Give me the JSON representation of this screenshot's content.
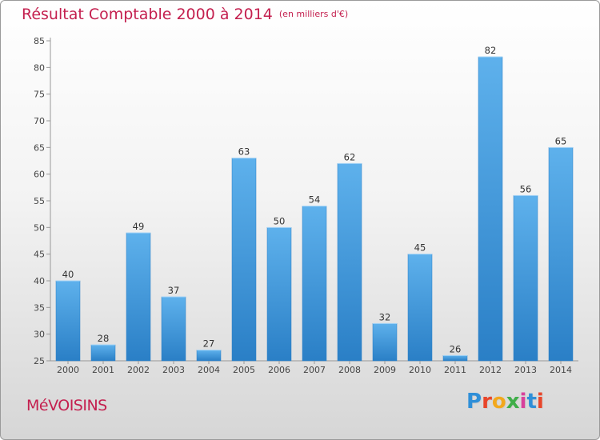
{
  "header": {
    "title": "Résultat Comptable 2000 à 2014",
    "subtitle": "(en milliers d'€)"
  },
  "footer": {
    "commune": "MéVOISINS",
    "logo_letters": [
      "P",
      "r",
      "o",
      "x",
      "i",
      "t",
      "i"
    ],
    "logo_colors": [
      "#2f8fd8",
      "#e8452a",
      "#f2a81d",
      "#3fae49",
      "#d8409b",
      "#2f8fd8",
      "#e8452a"
    ]
  },
  "colors": {
    "bar_light": "#5eb1ec",
    "bar_dark": "#2a7fc6",
    "title": "#c4204f"
  },
  "chart_data": {
    "type": "bar",
    "categories": [
      "2000",
      "2001",
      "2002",
      "2003",
      "2004",
      "2005",
      "2006",
      "2007",
      "2008",
      "2009",
      "2010",
      "2011",
      "2012",
      "2013",
      "2014"
    ],
    "values": [
      40,
      28,
      49,
      37,
      27,
      63,
      50,
      54,
      62,
      32,
      45,
      26,
      82,
      56,
      65
    ],
    "value_labels": [
      "40",
      "28",
      "49",
      "37",
      "27",
      "63",
      "50",
      "54",
      "62",
      "32",
      "45",
      "26",
      "82",
      "56",
      "65"
    ],
    "ylim": [
      25,
      85
    ],
    "yticks": [
      25,
      30,
      35,
      40,
      45,
      50,
      55,
      60,
      65,
      70,
      75,
      80,
      85
    ],
    "ytick_labels": [
      "25",
      "30",
      "35",
      "40",
      "45",
      "50",
      "55",
      "60",
      "65",
      "70",
      "75",
      "80",
      "85"
    ],
    "grid": false,
    "xlabel": "",
    "ylabel": ""
  }
}
